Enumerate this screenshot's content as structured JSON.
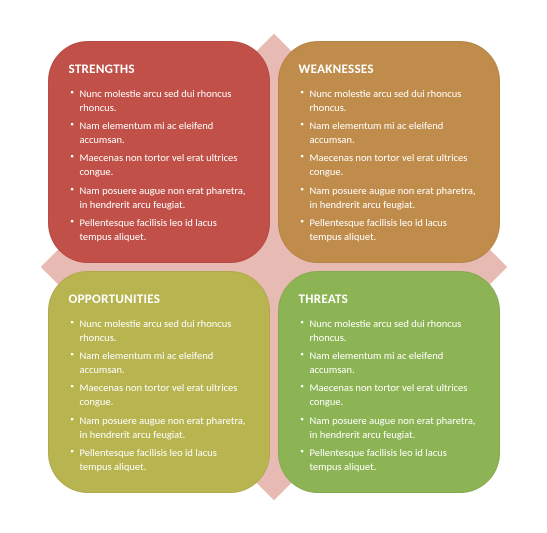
{
  "diagram": {
    "type": "swot-matrix",
    "background_color": "#ffffff",
    "diamond_color": "#e7bab3",
    "diamond_size": 330,
    "gap": 8,
    "quad_size": 222,
    "corner_radius": 40,
    "title_fontsize": 13,
    "title_weight": 700,
    "bullet_fontsize": 10.5,
    "text_color": "#ffffff",
    "quadrants": [
      {
        "key": "strengths",
        "title": "STRENGTHS",
        "bg": "#c05048",
        "items": [
          "Nunc molestie arcu sed dui rhoncus rhoncus.",
          "Nam elementum mi ac eleifend accumsan.",
          "Maecenas non tortor vel erat ultrices congue.",
          "Nam posuere augue non erat pharetra, in hendrerit arcu feugiat.",
          "Pellentesque facilisis leo id lacus tempus aliquet."
        ]
      },
      {
        "key": "weaknesses",
        "title": "WEAKNESSES",
        "bg": "#c08c4b",
        "items": [
          "Nunc molestie arcu sed dui rhoncus rhoncus.",
          "Nam elementum mi ac eleifend accumsan.",
          "Maecenas non tortor vel erat ultrices congue.",
          "Nam posuere augue non erat pharetra, in hendrerit arcu feugiat.",
          "Pellentesque facilisis leo id lacus tempus aliquet."
        ]
      },
      {
        "key": "opportunities",
        "title": "OPPORTUNITIES",
        "bg": "#b8b450",
        "items": [
          "Nunc molestie arcu sed dui rhoncus rhoncus.",
          "Nam elementum mi ac eleifend accumsan.",
          "Maecenas non tortor vel erat ultrices congue.",
          "Nam posuere augue non erat pharetra, in hendrerit arcu feugiat.",
          "Pellentesque facilisis leo id lacus tempus aliquet."
        ]
      },
      {
        "key": "threats",
        "title": "THREATS",
        "bg": "#8db454",
        "items": [
          "Nunc molestie arcu sed dui rhoncus rhoncus.",
          "Nam elementum mi ac eleifend accumsan.",
          "Maecenas non tortor vel erat ultrices congue.",
          "Nam posuere augue non erat pharetra, in hendrerit arcu feugiat.",
          "Pellentesque facilisis leo id lacus tempus aliquet."
        ]
      }
    ]
  }
}
